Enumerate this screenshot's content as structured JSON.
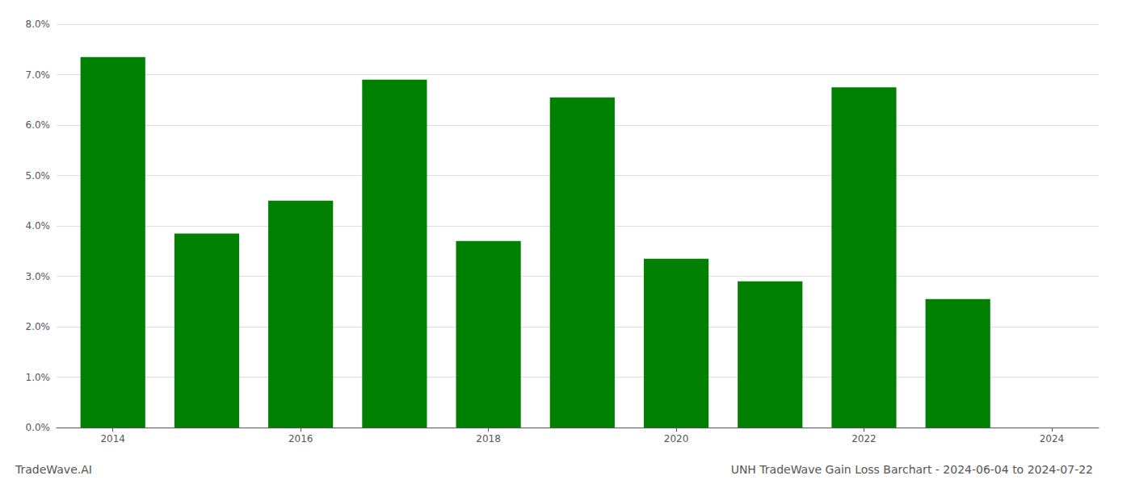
{
  "chart_data": {
    "type": "bar",
    "title": "UNH TradeWave Gain Loss Barchart - 2024-06-04 to 2024-07-22",
    "annotations": [
      "TradeWave.AI"
    ],
    "x": [
      2014,
      2015,
      2016,
      2017,
      2018,
      2019,
      2020,
      2021,
      2022,
      2023
    ],
    "values": [
      0.0735,
      0.0385,
      0.045,
      0.069,
      0.037,
      0.0655,
      0.0335,
      0.029,
      0.0675,
      0.0255
    ],
    "color": "#008000",
    "xlim": [
      2013.4,
      2024.5
    ],
    "xticks": [
      2014,
      2016,
      2018,
      2020,
      2022,
      2024
    ],
    "ylim": [
      0.0,
      0.08
    ],
    "yticks": [
      {
        "value": 0.0,
        "label": "0.0%"
      },
      {
        "value": 0.01,
        "label": "1.0%"
      },
      {
        "value": 0.02,
        "label": "2.0%"
      },
      {
        "value": 0.03,
        "label": "3.0%"
      },
      {
        "value": 0.04,
        "label": "4.0%"
      },
      {
        "value": 0.05,
        "label": "5.0%"
      },
      {
        "value": 0.06,
        "label": "6.0%"
      },
      {
        "value": 0.07,
        "label": "7.0%"
      },
      {
        "value": 0.08,
        "label": "8.0%"
      }
    ],
    "grid": true
  }
}
